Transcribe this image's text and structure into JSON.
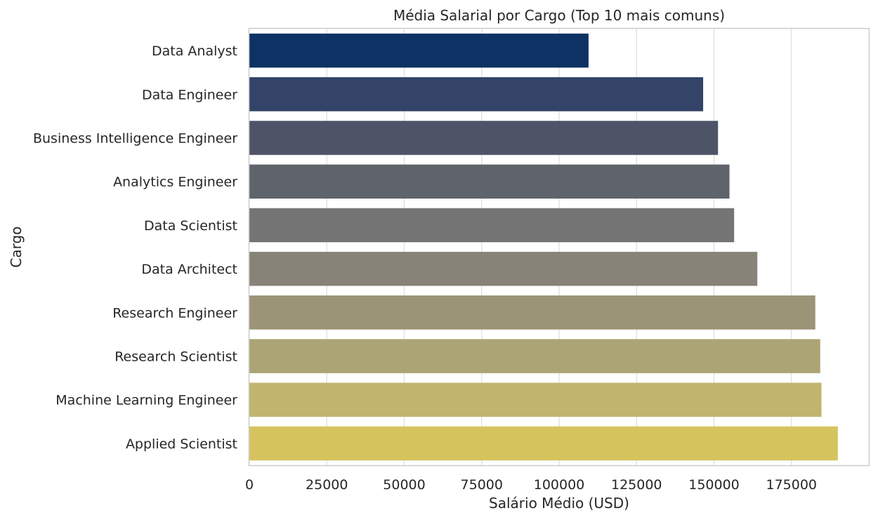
{
  "chart_data": {
    "type": "bar",
    "orientation": "horizontal",
    "title": "Média Salarial por Cargo (Top 10 mais comuns)",
    "xlabel": "Salário Médio (USD)",
    "ylabel": "Cargo",
    "xlim": [
      0,
      200000
    ],
    "xticks": [
      0,
      25000,
      50000,
      75000,
      100000,
      125000,
      150000,
      175000
    ],
    "grid": true,
    "categories": [
      "Data Analyst",
      "Data Engineer",
      "Business Intelligence Engineer",
      "Analytics Engineer",
      "Data Scientist",
      "Data Architect",
      "Research Engineer",
      "Research Scientist",
      "Machine Learning Engineer",
      "Applied Scientist"
    ],
    "values": [
      109500,
      146500,
      151300,
      155000,
      156500,
      164000,
      182700,
      184300,
      184700,
      190000
    ],
    "colors": [
      "#0e3263",
      "#334468",
      "#4d5468",
      "#5f636c",
      "#747474",
      "#888378",
      "#9b9476",
      "#ada475",
      "#c1b46d",
      "#d5c45e"
    ]
  }
}
